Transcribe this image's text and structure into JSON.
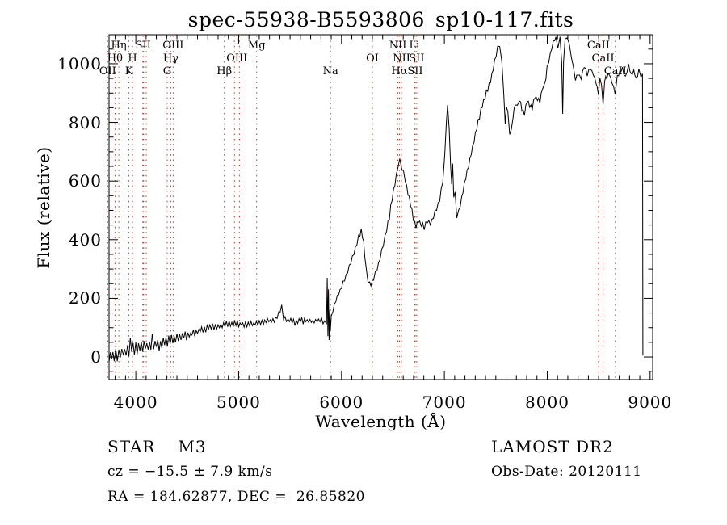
{
  "title": "spec-55938-B5593806_sp10-117.fits",
  "annotations": {
    "class_label": "STAR",
    "subclass_label": "M3",
    "cz_label": "cz = −15.5 ± 7.9 km/s",
    "radec_label": "RA = 184.62877, DEC =  26.85820",
    "survey_label": "LAMOST DR2",
    "obsdate_label": "Obs-Date: 20120111"
  },
  "chart_data": {
    "type": "line",
    "title": "spec-55938-B5593806_sp10-117.fits",
    "xlabel": "Wavelength (Å)",
    "ylabel": "Flux (relative)",
    "xlim": [
      3740,
      9025
    ],
    "ylim": [
      -77,
      1099
    ],
    "x_ticks": [
      4000,
      5000,
      6000,
      7000,
      8000,
      9000
    ],
    "x_minor_step": 100,
    "y_ticks": [
      0,
      200,
      400,
      600,
      800,
      1000
    ],
    "y_minor_step": 50,
    "grid": false,
    "line_color": "#000000",
    "marker_line_color": "#993322",
    "spectral_marker_wavelengths": [
      3727,
      3798,
      3835,
      3933,
      3968,
      4068,
      4076,
      4102,
      4305,
      4340,
      4363,
      4861,
      4959,
      5007,
      5175,
      5893,
      6300,
      6548,
      6563,
      6583,
      6708,
      6716,
      6731,
      8498,
      8542,
      8662
    ],
    "line_labels": [
      {
        "text": "Hη",
        "wl": 3835,
        "row": 1
      },
      {
        "text": "SII",
        "wl": 4072,
        "row": 1
      },
      {
        "text": "OIII",
        "wl": 4363,
        "row": 1
      },
      {
        "text": "Mg",
        "wl": 5175,
        "row": 1
      },
      {
        "text": "NII",
        "wl": 6548,
        "row": 1
      },
      {
        "text": "Li",
        "wl": 6708,
        "row": 1
      },
      {
        "text": "CaII",
        "wl": 8498,
        "row": 1
      },
      {
        "text": "Hθ",
        "wl": 3798,
        "row": 2
      },
      {
        "text": "H",
        "wl": 3968,
        "row": 2
      },
      {
        "text": "Hγ",
        "wl": 4340,
        "row": 2
      },
      {
        "text": "OIII",
        "wl": 4983,
        "row": 2
      },
      {
        "text": "OI",
        "wl": 6300,
        "row": 2
      },
      {
        "text": "NII",
        "wl": 6583,
        "row": 2
      },
      {
        "text": "SII",
        "wl": 6731,
        "row": 2
      },
      {
        "text": "CaII",
        "wl": 8542,
        "row": 2
      },
      {
        "text": "OII",
        "wl": 3727,
        "row": 3
      },
      {
        "text": "K",
        "wl": 3933,
        "row": 3
      },
      {
        "text": "G",
        "wl": 4305,
        "row": 3
      },
      {
        "text": "Hβ",
        "wl": 4861,
        "row": 3
      },
      {
        "text": "Na",
        "wl": 5893,
        "row": 3
      },
      {
        "text": "Hα",
        "wl": 6563,
        "row": 3
      },
      {
        "text": "SII",
        "wl": 6716,
        "row": 3
      },
      {
        "text": "CaII",
        "wl": 8662,
        "row": 3
      }
    ],
    "sampling_step_angstrom": 14,
    "series": [
      {
        "name": "spectrum",
        "points_format": [
          "wavelength_angstrom",
          "flux_relative",
          "noise_amplitude"
        ],
        "points": [
          [
            3740,
            2,
            26
          ],
          [
            3790,
            8,
            26
          ],
          [
            3850,
            14,
            27
          ],
          [
            3920,
            22,
            26
          ],
          [
            4000,
            28,
            24
          ],
          [
            4080,
            36,
            22
          ],
          [
            4160,
            42,
            21
          ],
          [
            4240,
            48,
            20
          ],
          [
            4320,
            56,
            19
          ],
          [
            4400,
            63,
            18
          ],
          [
            4480,
            70,
            17
          ],
          [
            4560,
            81,
            16
          ],
          [
            4640,
            93,
            14
          ],
          [
            4720,
            101,
            13
          ],
          [
            4800,
            106,
            12
          ],
          [
            4880,
            111,
            12
          ],
          [
            4960,
            115,
            11
          ],
          [
            5040,
            112,
            11
          ],
          [
            5120,
            111,
            11
          ],
          [
            5200,
            116,
            11
          ],
          [
            5280,
            121,
            11
          ],
          [
            5360,
            129,
            10
          ],
          [
            5402,
            155,
            6
          ],
          [
            5418,
            175,
            5
          ],
          [
            5436,
            138,
            8
          ],
          [
            5480,
            126,
            10
          ],
          [
            5560,
            122,
            10
          ],
          [
            5640,
            126,
            10
          ],
          [
            5720,
            121,
            10
          ],
          [
            5790,
            124,
            10
          ],
          [
            5835,
            118,
            7
          ],
          [
            5854,
            115,
            3
          ],
          [
            5861,
            268,
            2
          ],
          [
            5867,
            72,
            2
          ],
          [
            5873,
            228,
            2
          ],
          [
            5879,
            60,
            2
          ],
          [
            5886,
            158,
            3
          ],
          [
            5892,
            92,
            3
          ],
          [
            5900,
            138,
            4
          ],
          [
            5916,
            158,
            6
          ],
          [
            5945,
            192,
            7
          ],
          [
            6000,
            238,
            8
          ],
          [
            6060,
            292,
            8
          ],
          [
            6120,
            355,
            9
          ],
          [
            6165,
            408,
            8
          ],
          [
            6192,
            434,
            8
          ],
          [
            6215,
            392,
            9
          ],
          [
            6238,
            302,
            8
          ],
          [
            6258,
            256,
            7
          ],
          [
            6286,
            244,
            7
          ],
          [
            6312,
            268,
            7
          ],
          [
            6345,
            300,
            8
          ],
          [
            6390,
            360,
            9
          ],
          [
            6438,
            436,
            9
          ],
          [
            6478,
            510,
            10
          ],
          [
            6518,
            590,
            10
          ],
          [
            6548,
            648,
            9
          ],
          [
            6566,
            670,
            8
          ],
          [
            6586,
            648,
            9
          ],
          [
            6620,
            602,
            10
          ],
          [
            6658,
            542,
            10
          ],
          [
            6698,
            472,
            10
          ],
          [
            6724,
            448,
            9
          ],
          [
            6746,
            462,
            9
          ],
          [
            6774,
            452,
            9
          ],
          [
            6804,
            448,
            9
          ],
          [
            6834,
            462,
            9
          ],
          [
            6864,
            456,
            9
          ],
          [
            6894,
            478,
            10
          ],
          [
            6924,
            505,
            10
          ],
          [
            6954,
            535,
            11
          ],
          [
            6984,
            600,
            12
          ],
          [
            7004,
            685,
            9
          ],
          [
            7019,
            805,
            5
          ],
          [
            7031,
            858,
            4
          ],
          [
            7047,
            780,
            7
          ],
          [
            7060,
            645,
            9
          ],
          [
            7071,
            592,
            7
          ],
          [
            7081,
            655,
            5
          ],
          [
            7091,
            548,
            5
          ],
          [
            7104,
            556,
            7
          ],
          [
            7121,
            478,
            6
          ],
          [
            7139,
            496,
            8
          ],
          [
            7168,
            540,
            9
          ],
          [
            7208,
            612,
            10
          ],
          [
            7248,
            672,
            10
          ],
          [
            7288,
            740,
            11
          ],
          [
            7328,
            800,
            11
          ],
          [
            7368,
            855,
            11
          ],
          [
            7408,
            900,
            11
          ],
          [
            7448,
            940,
            11
          ],
          [
            7488,
            1005,
            10
          ],
          [
            7518,
            1052,
            8
          ],
          [
            7538,
            1065,
            7
          ],
          [
            7558,
            1002,
            9
          ],
          [
            7578,
            902,
            8
          ],
          [
            7591,
            792,
            5
          ],
          [
            7603,
            855,
            5
          ],
          [
            7617,
            832,
            6
          ],
          [
            7635,
            762,
            5
          ],
          [
            7651,
            772,
            6
          ],
          [
            7668,
            820,
            7
          ],
          [
            7689,
            866,
            8
          ],
          [
            7709,
            855,
            8
          ],
          [
            7729,
            880,
            8
          ],
          [
            7754,
            846,
            9
          ],
          [
            7779,
            832,
            9
          ],
          [
            7804,
            875,
            9
          ],
          [
            7829,
            856,
            9
          ],
          [
            7854,
            846,
            9
          ],
          [
            7879,
            888,
            9
          ],
          [
            7904,
            880,
            9
          ],
          [
            7929,
            876,
            9
          ],
          [
            7954,
            915,
            8
          ],
          [
            7974,
            926,
            8
          ],
          [
            7999,
            985,
            9
          ],
          [
            8029,
            1030,
            9
          ],
          [
            8059,
            1075,
            8
          ],
          [
            8084,
            1090,
            7
          ],
          [
            8104,
            1056,
            8
          ],
          [
            8124,
            1085,
            7
          ],
          [
            8141,
            1005,
            4
          ],
          [
            8150,
            828,
            2
          ],
          [
            8159,
            1010,
            4
          ],
          [
            8174,
            1080,
            6
          ],
          [
            8194,
            1090,
            6
          ],
          [
            8214,
            1065,
            7
          ],
          [
            8234,
            1030,
            8
          ],
          [
            8254,
            985,
            8
          ],
          [
            8274,
            950,
            8
          ],
          [
            8299,
            965,
            8
          ],
          [
            8329,
            950,
            8
          ],
          [
            8359,
            990,
            8
          ],
          [
            8389,
            965,
            8
          ],
          [
            8419,
            985,
            8
          ],
          [
            8449,
            962,
            8
          ],
          [
            8474,
            936,
            7
          ],
          [
            8497,
            896,
            4
          ],
          [
            8512,
            945,
            6
          ],
          [
            8528,
            930,
            6
          ],
          [
            8543,
            858,
            4
          ],
          [
            8558,
            945,
            6
          ],
          [
            8579,
            960,
            7
          ],
          [
            8604,
            966,
            7
          ],
          [
            8629,
            936,
            7
          ],
          [
            8661,
            898,
            5
          ],
          [
            8681,
            950,
            7
          ],
          [
            8706,
            975,
            7
          ],
          [
            8731,
            986,
            7
          ],
          [
            8761,
            956,
            7
          ],
          [
            8791,
            996,
            7
          ],
          [
            8816,
            960,
            7
          ],
          [
            8841,
            976,
            7
          ],
          [
            8866,
            950,
            7
          ],
          [
            8891,
            976,
            7
          ],
          [
            8911,
            956,
            6
          ],
          [
            8926,
            962,
            4
          ],
          [
            8930,
            5,
            0
          ]
        ]
      }
    ]
  }
}
